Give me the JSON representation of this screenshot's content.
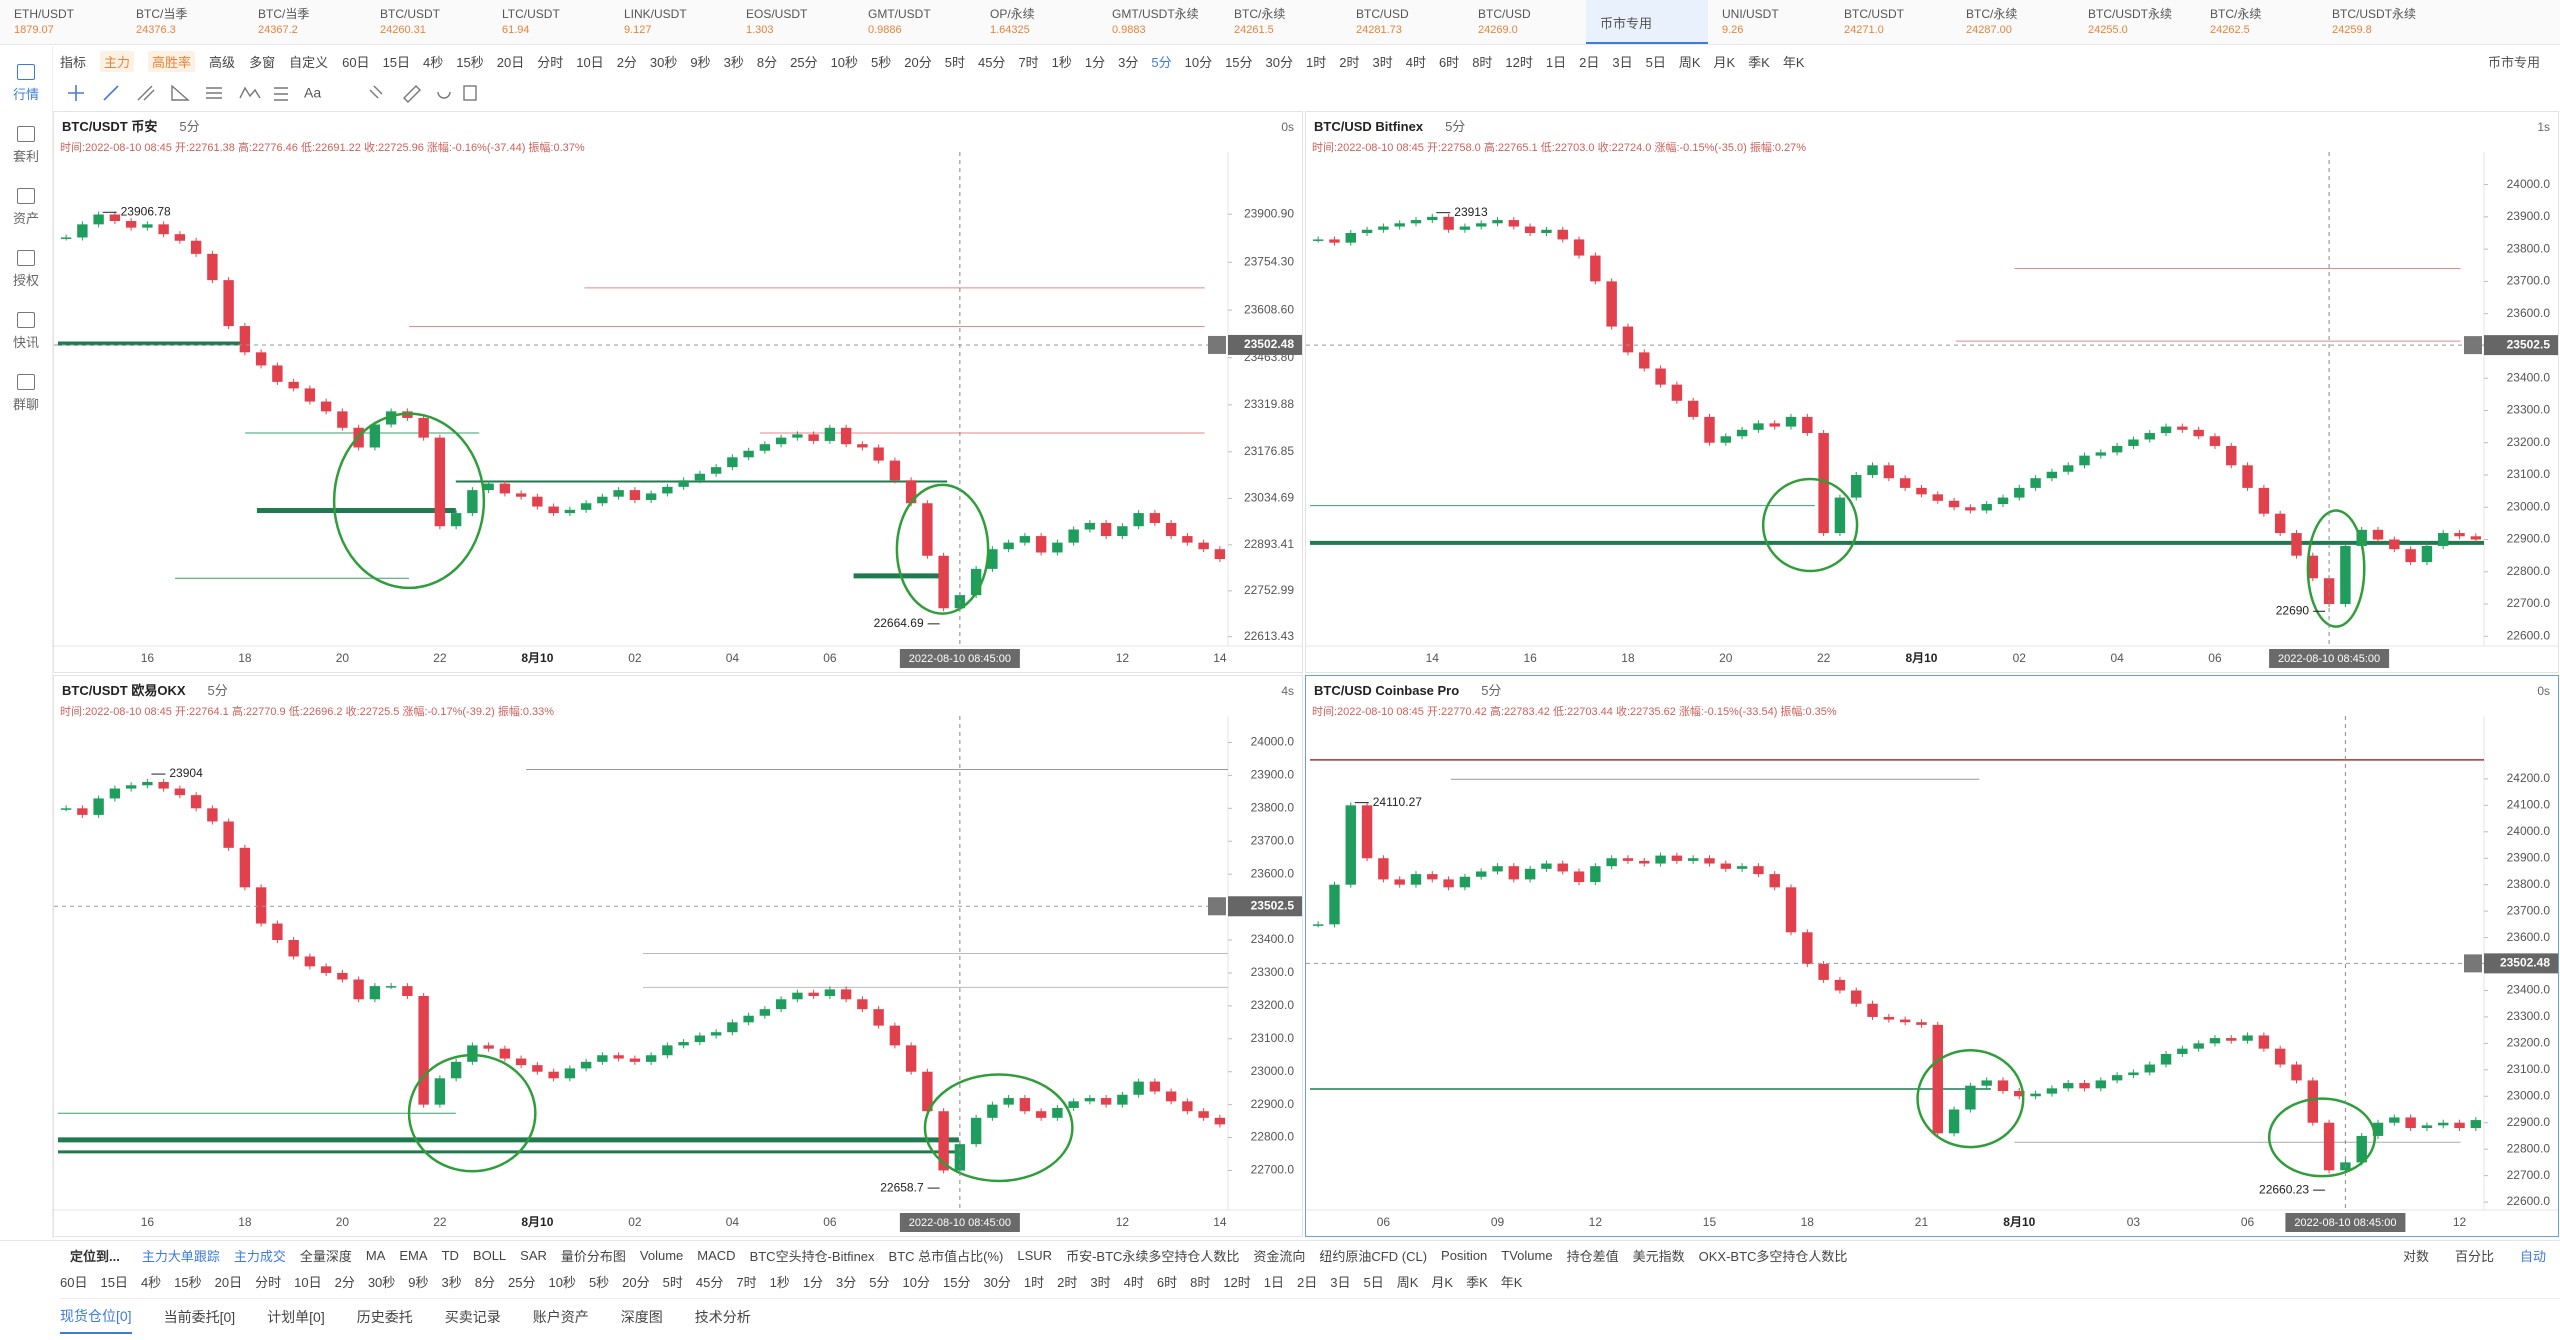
{
  "ticker": [
    {
      "name": "ETH/USDT",
      "price": "1879.07"
    },
    {
      "name": "BTC/当季",
      "price": "24376.3"
    },
    {
      "name": "BTC/当季",
      "price": "24367.2"
    },
    {
      "name": "BTC/USDT",
      "price": "24260.31"
    },
    {
      "name": "LTC/USDT",
      "price": "61.94"
    },
    {
      "name": "LINK/USDT",
      "price": "9.127"
    },
    {
      "name": "EOS/USDT",
      "price": "1.303"
    },
    {
      "name": "GMT/USDT",
      "price": "0.9886"
    },
    {
      "name": "OP/永续",
      "price": "1.64325"
    },
    {
      "name": "GMT/USDT永续",
      "price": "0.9883"
    },
    {
      "name": "BTC/永续",
      "price": "24261.5"
    },
    {
      "name": "BTC/USD",
      "price": "24281.73"
    },
    {
      "name": "BTC/USD",
      "price": "24269.0"
    },
    {
      "name": "币市专用"
    },
    {
      "name": "UNI/USDT",
      "price": "9.26"
    },
    {
      "name": "BTC/USDT",
      "price": "24271.0"
    },
    {
      "name": "BTC/永续",
      "price": "24287.00"
    },
    {
      "name": "BTC/USDT永续",
      "price": "24255.0"
    },
    {
      "name": "BTC/永续",
      "price": "24262.5"
    },
    {
      "name": "BTC/USDT永续",
      "price": "24259.8"
    }
  ],
  "toolbar": {
    "left": [
      "指标",
      "主力",
      "高胜率",
      "高级",
      "多窗",
      "自定义"
    ],
    "intervals": [
      "60日",
      "15日",
      "4秒",
      "15秒",
      "20日",
      "分时",
      "10日",
      "2分",
      "30秒",
      "9秒",
      "3秒",
      "8分",
      "25分",
      "10秒",
      "5秒",
      "20分",
      "5时",
      "45分",
      "7时",
      "1秒",
      "1分",
      "3分",
      "5分",
      "10分",
      "15分",
      "30分",
      "1时",
      "2时",
      "3时",
      "4时",
      "6时",
      "8时",
      "12时",
      "1日",
      "2日",
      "3日",
      "5日",
      "周K",
      "月K",
      "季K",
      "年K"
    ],
    "right": "币市专用",
    "draw_label": "Aa"
  },
  "sidebar": [
    "行情",
    "套利",
    "资产",
    "授权",
    "快讯",
    "群聊"
  ],
  "chart_data": [
    {
      "type": "candlestick",
      "title": "BTC/USDT 币安",
      "subtitle": "5分",
      "latency": "0s",
      "info": "时间:2022-08-10 08:45 开:22761.38 高:22776.46 低:22691.22 收:22725.96 涨幅:-0.16%(-37.44) 振幅:0.37%",
      "categories": [
        null,
        null,
        null,
        null,
        null,
        "16",
        null,
        null,
        null,
        null,
        null,
        "18",
        null,
        null,
        null,
        null,
        null,
        "20",
        null,
        null,
        null,
        null,
        null,
        "22",
        null,
        null,
        null,
        null,
        null,
        "8月10",
        null,
        null,
        null,
        null,
        null,
        "02",
        null,
        null,
        null,
        null,
        null,
        "04",
        null,
        null,
        null,
        null,
        null,
        "06",
        null,
        null,
        null,
        null,
        null,
        null,
        null,
        "2022-08-10 08:45:00",
        null,
        null,
        null,
        null,
        null,
        null,
        null,
        null,
        null,
        "12",
        null,
        null,
        null,
        null,
        null,
        "14"
      ],
      "values": [
        23830,
        23870,
        23900,
        23880,
        23860,
        23870,
        23840,
        23820,
        23780,
        23700,
        23560,
        23480,
        23440,
        23390,
        23370,
        23330,
        23300,
        23250,
        23190,
        23260,
        23300,
        23280,
        23220,
        22950,
        22990,
        23060,
        23080,
        23050,
        23040,
        23010,
        22990,
        23000,
        23020,
        23040,
        23060,
        23030,
        23050,
        23070,
        23090,
        23110,
        23130,
        23160,
        23180,
        23200,
        23220,
        23230,
        23210,
        23250,
        23200,
        23190,
        23150,
        23090,
        23020,
        22860,
        22700,
        22740,
        22820,
        22880,
        22900,
        22920,
        22870,
        22900,
        22940,
        22960,
        22920,
        22950,
        22990,
        22960,
        22920,
        22900,
        22880,
        22850
      ],
      "ylim": [
        22585,
        24060
      ],
      "yticks": [
        {
          "value": 23900.9,
          "label": "23900.90"
        },
        {
          "value": 23754.3,
          "label": "23754.30"
        },
        {
          "value": 23608.6,
          "label": "23608.60"
        },
        {
          "value": 23463.8,
          "label": "23463.80"
        },
        23319.88,
        23176.85,
        23034.69,
        22893.41,
        22752.99,
        22613.43
      ],
      "last_price": 23502.48,
      "high_label": 23906.78,
      "low_label": 22664.69
    },
    {
      "type": "candlestick",
      "title": "BTC/USD Bitfinex",
      "subtitle": "5分",
      "latency": "1s",
      "info": "时间:2022-08-10 08:45 开:22758.0 高:22765.1 低:22703.0 收:22724.0 涨幅:-0.15%(-35.0) 振幅:0.27%",
      "categories": [
        null,
        null,
        null,
        null,
        null,
        null,
        null,
        "14",
        null,
        null,
        null,
        null,
        null,
        "16",
        null,
        null,
        null,
        null,
        null,
        "18",
        null,
        null,
        null,
        null,
        null,
        "20",
        null,
        null,
        null,
        null,
        null,
        "22",
        null,
        null,
        null,
        null,
        null,
        "8月10",
        null,
        null,
        null,
        null,
        null,
        "02",
        null,
        null,
        null,
        null,
        null,
        "04",
        null,
        null,
        null,
        null,
        null,
        "06",
        null,
        null,
        null,
        null,
        null,
        null,
        "2022-08-10 08:45:00",
        null,
        null,
        null,
        null,
        null,
        null,
        null,
        null,
        null
      ],
      "values": [
        23830,
        23820,
        23850,
        23860,
        23870,
        23880,
        23890,
        23900,
        23860,
        23870,
        23880,
        23890,
        23870,
        23850,
        23860,
        23830,
        23780,
        23700,
        23560,
        23480,
        23430,
        23380,
        23330,
        23280,
        23200,
        23220,
        23240,
        23260,
        23250,
        23280,
        23230,
        22920,
        23030,
        23100,
        23130,
        23090,
        23060,
        23040,
        23020,
        23000,
        22990,
        23010,
        23030,
        23060,
        23090,
        23110,
        23130,
        23160,
        23170,
        23190,
        23210,
        23230,
        23250,
        23240,
        23220,
        23190,
        23130,
        23060,
        22980,
        22920,
        22850,
        22780,
        22700,
        22880,
        22930,
        22900,
        22870,
        22830,
        22880,
        22920,
        22910,
        22900
      ],
      "ylim": [
        22570,
        24070
      ],
      "yticks": [
        {
          "value": 24000,
          "label": "24000.0"
        },
        {
          "value": 23900,
          "label": "23900.0"
        },
        {
          "value": 23800,
          "label": "23800.0"
        },
        {
          "value": 23700,
          "label": "23700.0"
        },
        {
          "value": 23600,
          "label": "23600.0"
        },
        {
          "value": 23500,
          "label": "23500.0"
        },
        {
          "value": 23400,
          "label": "23400.0"
        },
        {
          "value": 23300,
          "label": "23300.0"
        },
        {
          "value": 23200,
          "label": "23200.0"
        },
        {
          "value": 23100,
          "label": "23100.0"
        },
        {
          "value": 23000,
          "label": "23000.0"
        },
        {
          "value": 22900,
          "label": "22900.0"
        },
        {
          "value": 22800,
          "label": "22800.0"
        },
        {
          "value": 22700,
          "label": "22700.0"
        },
        {
          "value": 22600,
          "label": "22600.0"
        }
      ],
      "last_price": 23502.5,
      "high_label": 23913,
      "low_label": 22690
    },
    {
      "type": "candlestick",
      "title": "BTC/USDT 欧易OKX",
      "subtitle": "5分",
      "latency": "4s",
      "info": "时间:2022-08-10 08:45 开:22764.1 高:22770.9 低:22696.2 收:22725.5 涨幅:-0.17%(-39.2) 振幅:0.33%",
      "categories": [
        null,
        null,
        null,
        null,
        null,
        "16",
        null,
        null,
        null,
        null,
        null,
        "18",
        null,
        null,
        null,
        null,
        null,
        "20",
        null,
        null,
        null,
        null,
        null,
        "22",
        null,
        null,
        null,
        null,
        null,
        "8月10",
        null,
        null,
        null,
        null,
        null,
        "02",
        null,
        null,
        null,
        null,
        null,
        "04",
        null,
        null,
        null,
        null,
        null,
        "06",
        null,
        null,
        null,
        null,
        null,
        null,
        null,
        "2022-08-10 08:45:00",
        null,
        null,
        null,
        null,
        null,
        null,
        null,
        null,
        null,
        "12",
        null,
        null,
        null,
        null,
        null,
        "14"
      ],
      "values": [
        23800,
        23780,
        23830,
        23860,
        23870,
        23880,
        23860,
        23840,
        23800,
        23760,
        23680,
        23560,
        23450,
        23400,
        23350,
        23320,
        23300,
        23280,
        23220,
        23260,
        23260,
        23230,
        22900,
        22980,
        23030,
        23080,
        23070,
        23040,
        23020,
        23000,
        22980,
        23010,
        23030,
        23050,
        23040,
        23030,
        23050,
        23080,
        23090,
        23110,
        23120,
        23150,
        23170,
        23190,
        23220,
        23240,
        23230,
        23250,
        23220,
        23190,
        23140,
        23080,
        23000,
        22880,
        22700,
        22780,
        22860,
        22900,
        22920,
        22880,
        22860,
        22890,
        22910,
        22920,
        22900,
        22930,
        22970,
        22940,
        22910,
        22880,
        22860,
        22840
      ],
      "ylim": [
        22580,
        24050
      ],
      "yticks": [
        {
          "value": 24000,
          "label": "24000.0"
        },
        {
          "value": 23900,
          "label": "23900.0"
        },
        {
          "value": 23800,
          "label": "23800.0"
        },
        {
          "value": 23700,
          "label": "23700.0"
        },
        {
          "value": 23600,
          "label": "23600.0"
        },
        {
          "value": 23400,
          "label": "23400.0"
        },
        {
          "value": 23300,
          "label": "23300.0"
        },
        {
          "value": 23200,
          "label": "23200.0"
        },
        {
          "value": 23100,
          "label": "23100.0"
        },
        {
          "value": 23000,
          "label": "23000.0"
        },
        {
          "value": 22900,
          "label": "22900.0"
        },
        {
          "value": 22800,
          "label": "22800.0"
        },
        {
          "value": 22700,
          "label": "22700.0"
        }
      ],
      "last_price": 23502.5,
      "high_label": 23904,
      "low_label": 22658.7
    },
    {
      "type": "candlestick",
      "title": "BTC/USD Coinbase Pro",
      "subtitle": "5分",
      "latency": "0s",
      "info": "时间:2022-08-10 08:45 开:22770.42 高:22783.42 低:22703.44 收:22735.62 涨幅:-0.15%(-33.54) 振幅:0.35%",
      "categories": [
        null,
        null,
        null,
        null,
        "06",
        null,
        null,
        null,
        null,
        null,
        null,
        "09",
        null,
        null,
        null,
        null,
        null,
        "12",
        null,
        null,
        null,
        null,
        null,
        null,
        "15",
        null,
        null,
        null,
        null,
        null,
        "18",
        null,
        null,
        null,
        null,
        null,
        null,
        "21",
        null,
        null,
        null,
        null,
        null,
        "8月10",
        null,
        null,
        null,
        null,
        null,
        null,
        "03",
        null,
        null,
        null,
        null,
        null,
        null,
        "06",
        null,
        null,
        null,
        null,
        null,
        "2022-08-10 08:45:00",
        null,
        null,
        null,
        null,
        null,
        null,
        "12",
        null
      ],
      "values": [
        23650,
        23800,
        24100,
        23900,
        23820,
        23800,
        23840,
        23820,
        23790,
        23830,
        23850,
        23870,
        23820,
        23860,
        23880,
        23850,
        23810,
        23870,
        23900,
        23890,
        23880,
        23910,
        23890,
        23900,
        23880,
        23860,
        23870,
        23840,
        23790,
        23620,
        23500,
        23440,
        23400,
        23350,
        23300,
        23290,
        23280,
        23270,
        22860,
        22950,
        23040,
        23060,
        23020,
        23000,
        23010,
        23030,
        23050,
        23030,
        23060,
        23080,
        23090,
        23120,
        23160,
        23180,
        23200,
        23220,
        23210,
        23230,
        23180,
        23120,
        23060,
        22900,
        22720,
        22750,
        22850,
        22900,
        22920,
        22880,
        22890,
        22900,
        22880,
        22910
      ],
      "ylim": [
        22570,
        24400
      ],
      "yticks": [
        {
          "value": 24200,
          "label": "24200.0"
        },
        {
          "value": 24100,
          "label": "24100.0"
        },
        {
          "value": 24000,
          "label": "24000.0"
        },
        {
          "value": 23900,
          "label": "23900.0"
        },
        {
          "value": 23800,
          "label": "23800.0"
        },
        {
          "value": 23700,
          "label": "23700.0"
        },
        {
          "value": 23600,
          "label": "23600.0"
        },
        {
          "value": 23400,
          "label": "23400.0"
        },
        {
          "value": 23300,
          "label": "23300.0"
        },
        {
          "value": 23200,
          "label": "23200.0"
        },
        {
          "value": 23100,
          "label": "23100.0"
        },
        {
          "value": 23000,
          "label": "23000.0"
        },
        {
          "value": 22900,
          "label": "22900.0"
        },
        {
          "value": 22800,
          "label": "22800.0"
        },
        {
          "value": 22700,
          "label": "22700.0"
        },
        {
          "value": 22600,
          "label": "22600.0"
        }
      ],
      "last_price": 23502.48,
      "high_label": 24110.27,
      "low_label": 22660.23
    }
  ],
  "bottom": {
    "locate": "定位到...",
    "indicators": [
      "主力大单跟踪",
      "主力成交",
      "全量深度",
      "MA",
      "EMA",
      "TD",
      "BOLL",
      "SAR",
      "量价分布图",
      "Volume",
      "MACD",
      "BTC空头持仓-Bitfinex",
      "BTC 总市值占比(%)",
      "LSUR",
      "币安-BTC永续多空持仓人数比",
      "资金流向",
      "纽约原油CFD (CL)",
      "Position",
      "TVolume",
      "持仓差值",
      "美元指数",
      "OKX-BTC多空持仓人数比"
    ],
    "right": [
      "对数",
      "百分比",
      "自动"
    ],
    "intervals": [
      "60日",
      "15日",
      "4秒",
      "15秒",
      "20日",
      "分时",
      "10日",
      "2分",
      "30秒",
      "9秒",
      "3秒",
      "8分",
      "25分",
      "10秒",
      "5秒",
      "20分",
      "5时",
      "45分",
      "7时",
      "1秒",
      "1分",
      "3分",
      "5分",
      "10分",
      "15分",
      "30分",
      "1时",
      "2时",
      "3时",
      "4时",
      "6时",
      "8时",
      "12时",
      "1日",
      "2日",
      "3日",
      "5日",
      "周K",
      "月K",
      "季K",
      "年K"
    ],
    "tabs": [
      "现货仓位[0]",
      "当前委托[0]",
      "计划单[0]",
      "历史委托",
      "买卖记录",
      "账户资产",
      "深度图",
      "技术分析"
    ]
  }
}
